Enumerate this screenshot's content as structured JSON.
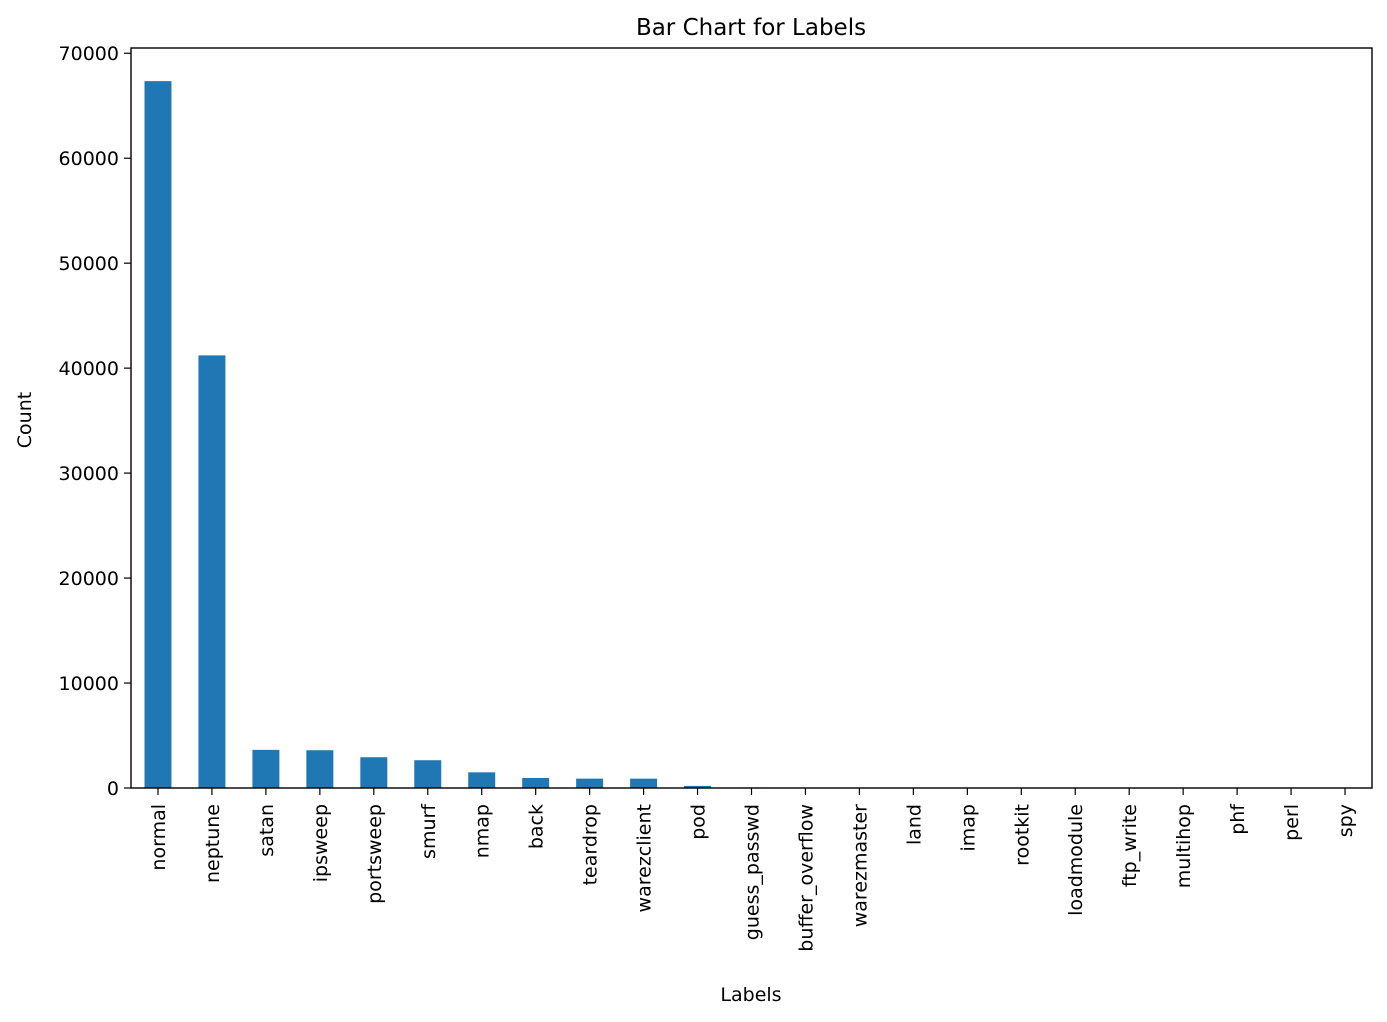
{
  "chart_data": {
    "type": "bar",
    "title": "Bar Chart for Labels",
    "xlabel": "Labels",
    "ylabel": "Count",
    "ylim": [
      0,
      70500
    ],
    "yticks": [
      0,
      10000,
      20000,
      30000,
      40000,
      50000,
      60000,
      70000
    ],
    "grid": false,
    "legend": "none",
    "bar_color": "#1f77b4",
    "categories": [
      "normal",
      "neptune",
      "satan",
      "ipsweep",
      "portsweep",
      "smurf",
      "nmap",
      "back",
      "teardrop",
      "warezclient",
      "pod",
      "guess_passwd",
      "buffer_overflow",
      "warezmaster",
      "land",
      "imap",
      "rootkit",
      "loadmodule",
      "ftp_write",
      "multihop",
      "phf",
      "perl",
      "spy"
    ],
    "values": [
      67343,
      41214,
      3633,
      3599,
      2931,
      2646,
      1493,
      956,
      892,
      890,
      201,
      53,
      30,
      20,
      18,
      11,
      10,
      9,
      8,
      7,
      4,
      3,
      2
    ]
  }
}
